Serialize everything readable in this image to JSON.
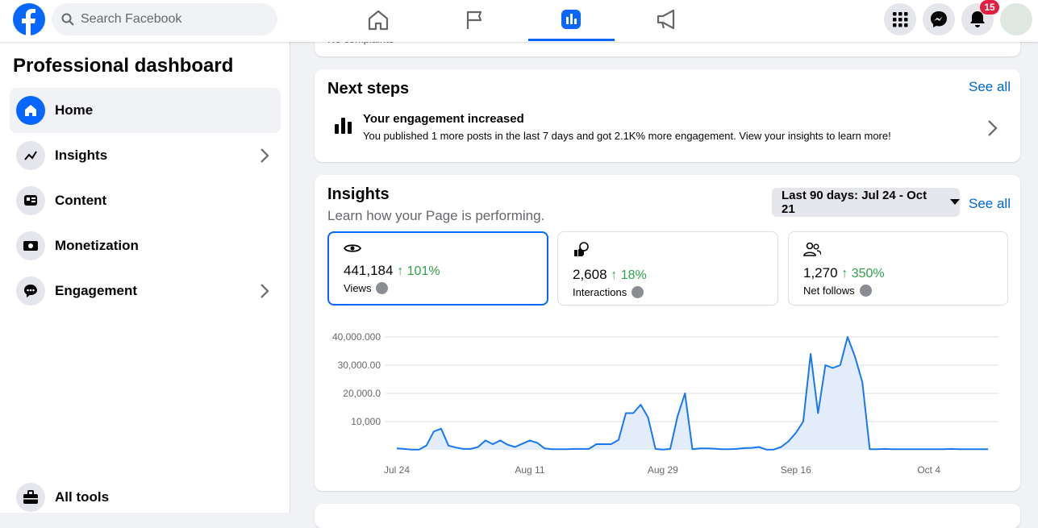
{
  "header": {
    "search_placeholder": "Search Facebook",
    "notification_count": 15
  },
  "sidebar": {
    "title": "Professional dashboard",
    "items": [
      "Home",
      "Insights",
      "Content",
      "Monetization",
      "Engagement"
    ],
    "all_tools": "All tools"
  },
  "top_card": {
    "text": "No complaints"
  },
  "next_steps": {
    "title": "Next steps",
    "see_all": "See all",
    "item_title": "Your engagement increased",
    "item_text": "You published 1 more posts in the last 7 days and got 2.1K% more engagement. View your insights to learn more!"
  },
  "insights": {
    "title": "Insights",
    "subtitle": "Learn how your Page is performing.",
    "date_range": "Last 90 days: Jul 24 - Oct 21",
    "see_all": "See all",
    "cards": [
      {
        "value": "441,184",
        "change": "101%",
        "label": "Views"
      },
      {
        "value": "2,608",
        "change": "18%",
        "label": "Interactions"
      },
      {
        "value": "1,270",
        "change": "350%",
        "label": "Net follows"
      }
    ]
  },
  "chart_data": {
    "type": "line",
    "color": "#1877f2",
    "area_color": "#e3edfa",
    "categories": [
      "Jul 24",
      null,
      null,
      null,
      null,
      null,
      null,
      null,
      null,
      null,
      null,
      null,
      null,
      null,
      null,
      null,
      null,
      null,
      "Aug 11",
      null,
      null,
      null,
      null,
      null,
      null,
      null,
      null,
      null,
      null,
      null,
      null,
      null,
      null,
      null,
      null,
      null,
      "Aug 29",
      null,
      null,
      null,
      null,
      null,
      null,
      null,
      null,
      null,
      null,
      null,
      null,
      null,
      null,
      null,
      null,
      null,
      "Sep 16",
      null,
      null,
      null,
      null,
      null,
      null,
      null,
      null,
      null,
      null,
      null,
      null,
      null,
      null,
      null,
      null,
      null,
      "Oct 4",
      null,
      null,
      null,
      null,
      null,
      null,
      null,
      null
    ],
    "values": [
      500,
      300,
      100,
      100,
      1500,
      6500,
      7500,
      1500,
      800,
      300,
      300,
      1000,
      3300,
      2000,
      3300,
      1800,
      1000,
      2200,
      3300,
      2500,
      500,
      200,
      200,
      200,
      300,
      300,
      300,
      2000,
      2000,
      2000,
      3500,
      13000,
      13000,
      16000,
      11500,
      300,
      100,
      300,
      12000,
      20000,
      200,
      500,
      500,
      400,
      200,
      200,
      300,
      600,
      700,
      1000,
      100,
      100,
      1000,
      3000,
      6000,
      10000,
      34000,
      13000,
      30000,
      29000,
      30000,
      40000,
      33000,
      24000,
      200,
      200,
      300,
      200,
      200,
      200,
      200,
      200,
      200,
      200,
      200,
      300,
      200,
      200,
      200,
      200,
      200
    ],
    "ylim": [
      0,
      40000
    ],
    "yticks": [
      {
        "value": 10000,
        "label": "10,000"
      },
      {
        "value": 20000,
        "label": "20,000.0"
      },
      {
        "value": 30000,
        "label": "30,000.00"
      },
      {
        "value": 40000,
        "label": "40,000.000"
      }
    ],
    "grid": true
  }
}
